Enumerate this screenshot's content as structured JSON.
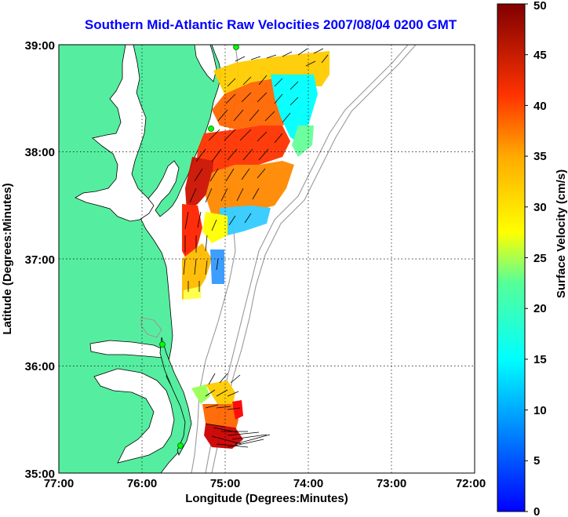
{
  "title": "Southern Mid-Atlantic Raw Velocities 2007/08/04 0200 GMT",
  "map": {
    "xlabel": "Longitude (Degrees:Minutes)",
    "ylabel": "Latitude (Degrees:Minutes)",
    "x_ticks": [
      "77:00",
      "76:00",
      "75:00",
      "74:00",
      "73:00",
      "72:00"
    ],
    "y_ticks": [
      "39:00",
      "38:00",
      "37:00",
      "36:00",
      "35:00"
    ],
    "lon_range": [
      -77,
      -72
    ],
    "lat_range": [
      35,
      39
    ],
    "grid": true,
    "land_color": "#55eea0",
    "shoreline_color": "#000000",
    "bathymetry_color": "#999999"
  },
  "colorbar": {
    "label": "Surface Velocity (cm/s)",
    "ticks": [
      "0",
      "5",
      "10",
      "15",
      "20",
      "25",
      "30",
      "35",
      "40",
      "45",
      "50"
    ],
    "range": [
      0,
      50
    ],
    "colormap": "jet"
  },
  "stations": [
    {
      "lon": -74.85,
      "lat": 38.98
    },
    {
      "lon": -75.14,
      "lat": 38.22
    },
    {
      "lon": -75.7,
      "lat": 36.18
    },
    {
      "lon": -75.52,
      "lat": 35.24
    }
  ]
}
